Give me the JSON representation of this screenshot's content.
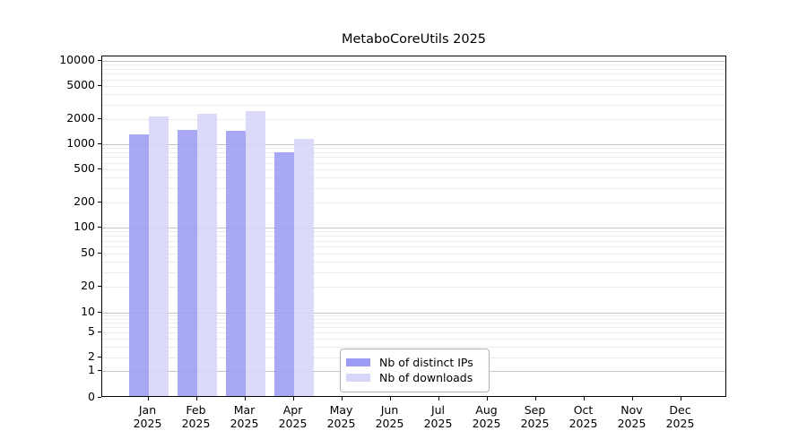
{
  "title": "MetaboCoreUtils 2025",
  "chart_data": {
    "type": "bar",
    "title": "MetaboCoreUtils 2025",
    "xlabel": "",
    "ylabel": "",
    "scale": "log-like (pseudo-log, linear below 1)",
    "ylim": [
      0,
      10000
    ],
    "grid": "horizontal major and log-minor gridlines",
    "legend_position": "lower center",
    "categories": [
      "Jan",
      "Feb",
      "Mar",
      "Apr",
      "May",
      "Jun",
      "Jul",
      "Aug",
      "Sep",
      "Oct",
      "Nov",
      "Dec"
    ],
    "year": "2025",
    "yticks": [
      0,
      1,
      2,
      5,
      10,
      20,
      50,
      100,
      200,
      500,
      1000,
      2000,
      5000,
      10000
    ],
    "series": [
      {
        "name": "Nb of distinct IPs",
        "color": "#9c9cf4",
        "values": [
          1300,
          1500,
          1450,
          800,
          null,
          null,
          null,
          null,
          null,
          null,
          null,
          null
        ]
      },
      {
        "name": "Nb of downloads",
        "color": "#d6d6f8",
        "values": [
          2150,
          2300,
          2500,
          1150,
          null,
          null,
          null,
          null,
          null,
          null,
          null,
          null
        ]
      }
    ],
    "colors": {
      "major_gridline": "#c4c4c4",
      "minor_gridline": "#ececec",
      "axis": "#000000",
      "background": "#ffffff"
    }
  }
}
